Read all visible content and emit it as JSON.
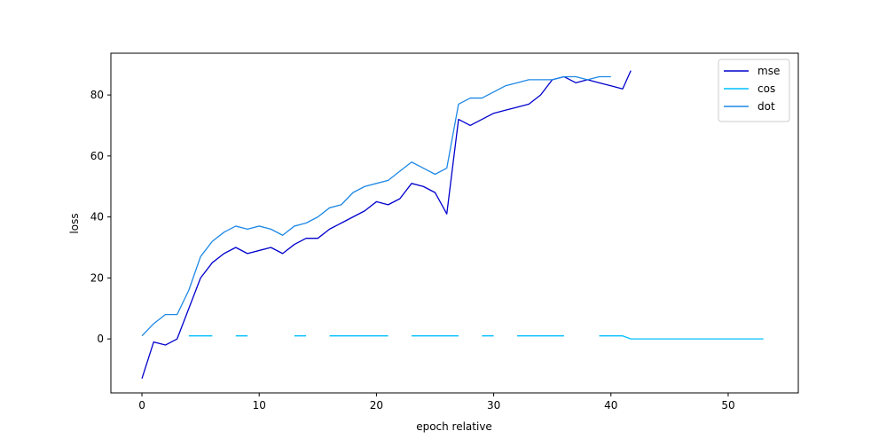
{
  "chart_data": {
    "type": "line",
    "x_label": "epoch relative",
    "y_label": "loss",
    "x": [
      0,
      1,
      2,
      3,
      4,
      5,
      6,
      7,
      8,
      9,
      10,
      11,
      12,
      13,
      14,
      15,
      16,
      17,
      18,
      19,
      20,
      21,
      22,
      23,
      24,
      25,
      26,
      27,
      28,
      29,
      30,
      31,
      32,
      33,
      34,
      35,
      36,
      37,
      38,
      39,
      40,
      41,
      41.7,
      42,
      43,
      44,
      45,
      46,
      47,
      48,
      49,
      50,
      51,
      52,
      53
    ],
    "series": [
      {
        "name": "mse",
        "color": "#0000cd",
        "values": [
          -13,
          -1,
          -2,
          0,
          10,
          20,
          25,
          28,
          30,
          28,
          29,
          30,
          28,
          31,
          33,
          33,
          36,
          38,
          40,
          42,
          45,
          44,
          46,
          51,
          50,
          48,
          41,
          72,
          70,
          72,
          74,
          75,
          76,
          77,
          80,
          85,
          86,
          84,
          85,
          84,
          83,
          82,
          88,
          null,
          null,
          null,
          null,
          null,
          null,
          null,
          null,
          null,
          null,
          null,
          null
        ]
      },
      {
        "name": "cos",
        "color": "#00bfff",
        "values": [
          null,
          null,
          null,
          null,
          1,
          1,
          1,
          null,
          1,
          1,
          null,
          null,
          null,
          1,
          1,
          null,
          1,
          1,
          1,
          1,
          1,
          1,
          null,
          1,
          1,
          1,
          1,
          1,
          null,
          1,
          1,
          null,
          1,
          1,
          1,
          1,
          1,
          null,
          null,
          1,
          1,
          1,
          0,
          0,
          0,
          0,
          0,
          0,
          0,
          0,
          0,
          0,
          0,
          0,
          0
        ]
      },
      {
        "name": "dot",
        "color": "#1e88e5",
        "values": [
          1,
          5,
          8,
          8,
          16,
          27,
          32,
          35,
          37,
          36,
          37,
          36,
          34,
          37,
          38,
          40,
          43,
          44,
          48,
          50,
          51,
          52,
          55,
          58,
          56,
          54,
          56,
          77,
          79,
          79,
          81,
          83,
          84,
          85,
          85,
          85,
          86,
          86,
          85,
          86,
          86,
          null,
          null,
          null,
          null,
          null,
          null,
          null,
          null,
          null,
          null,
          null,
          null,
          null,
          null
        ]
      }
    ],
    "xlim": [
      -2.65,
      55.98
    ],
    "ylim": [
      -17.7,
      93.7
    ],
    "xticks": [
      0,
      10,
      20,
      30,
      40,
      50
    ],
    "yticks": [
      0,
      20,
      40,
      60,
      80
    ],
    "legend": "upper right"
  }
}
